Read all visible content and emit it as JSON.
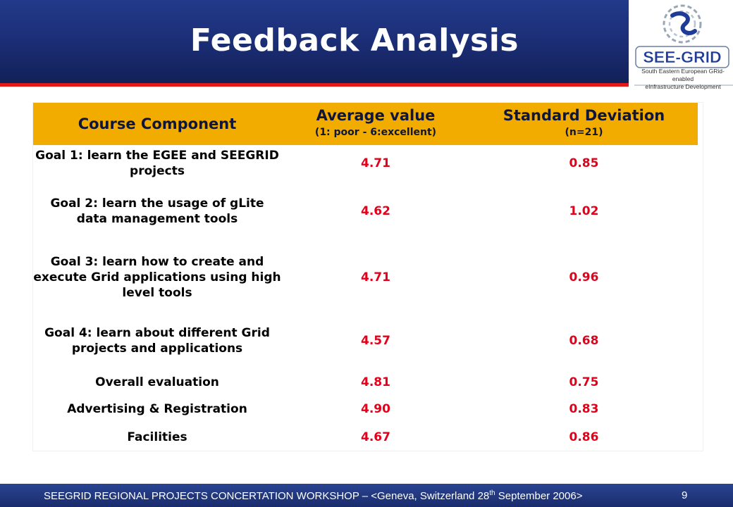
{
  "header": {
    "title": "Feedback Analysis"
  },
  "logo": {
    "name": "SEE-GRID",
    "tagline_1": "South Eastern European GRid-enabled",
    "tagline_2": "eInfrastructure Development"
  },
  "table": {
    "headers": {
      "col1": "Course Component",
      "col2": "Average value",
      "col2_sub": "(1: poor - 6:excellent)",
      "col3": "Standard Deviation",
      "col3_sub": "(n=21)"
    },
    "rows": [
      {
        "label": "Goal 1: learn the EGEE and SEEGRID projects",
        "avg": "4.71",
        "sd": "0.85"
      },
      {
        "label": "Goal 2: learn the usage of gLite data management tools",
        "avg": "4.62",
        "sd": "1.02"
      },
      {
        "label": "Goal 3: learn how to create and execute Grid applications using high level tools",
        "avg": "4.71",
        "sd": "0.96"
      },
      {
        "label": "Goal 4: learn about different Grid projects and applications",
        "avg": "4.57",
        "sd": "0.68"
      },
      {
        "label": "Overall evaluation",
        "avg": "4.81",
        "sd": "0.75"
      },
      {
        "label": "Advertising & Registration",
        "avg": "4.90",
        "sd": "0.83"
      },
      {
        "label": "Facilities",
        "avg": "4.67",
        "sd": "0.86"
      }
    ]
  },
  "footer": {
    "text_before": "SEEGRID REGIONAL PROJECTS CONCERTATION WORKSHOP – <Geneva, Switzerland 28",
    "text_sup": "th",
    "text_after": " September 2006>",
    "page_number": "9"
  }
}
